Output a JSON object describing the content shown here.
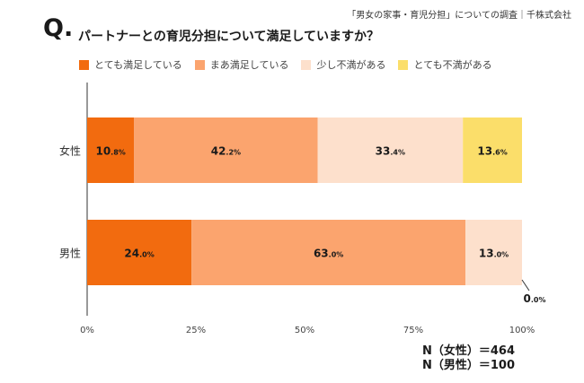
{
  "header": {
    "source": "「男女の家事・育児分担」についての調査｜千株式会社",
    "q_mark": "Q.",
    "question": "パートナーとの育児分担について満足していますか？"
  },
  "chart_data": {
    "type": "bar",
    "orientation": "horizontal-stacked-100",
    "categories": [
      "女性",
      "男性"
    ],
    "series": [
      {
        "name": "とても満足している",
        "values": [
          10.8,
          24.0
        ],
        "color": "#f26b0f"
      },
      {
        "name": "まあ満足している",
        "values": [
          42.2,
          63.0
        ],
        "color": "#fba46e"
      },
      {
        "name": "少し不満がある",
        "values": [
          33.4,
          13.0
        ],
        "color": "#fde0cc"
      },
      {
        "name": "とても不満がある",
        "values": [
          13.6,
          0.0
        ],
        "color": "#fbde6a"
      }
    ],
    "data_labels": [
      [
        {
          "int": "10",
          "dec": ".8%"
        },
        {
          "int": "42",
          "dec": ".2%"
        },
        {
          "int": "33",
          "dec": ".4%"
        },
        {
          "int": "13",
          "dec": ".6%"
        }
      ],
      [
        {
          "int": "24",
          "dec": ".0%"
        },
        {
          "int": "63",
          "dec": ".0%"
        },
        {
          "int": "13",
          "dec": ".0%"
        },
        {
          "int": "0",
          "dec": ".0%"
        }
      ]
    ],
    "xlim": [
      0,
      100
    ],
    "xticks": [
      "0%",
      "25%",
      "50%",
      "75%",
      "100%"
    ],
    "legend_position": "top",
    "grid": false
  },
  "sample_sizes": [
    "N（女性）＝464",
    "N（男性）＝100"
  ]
}
